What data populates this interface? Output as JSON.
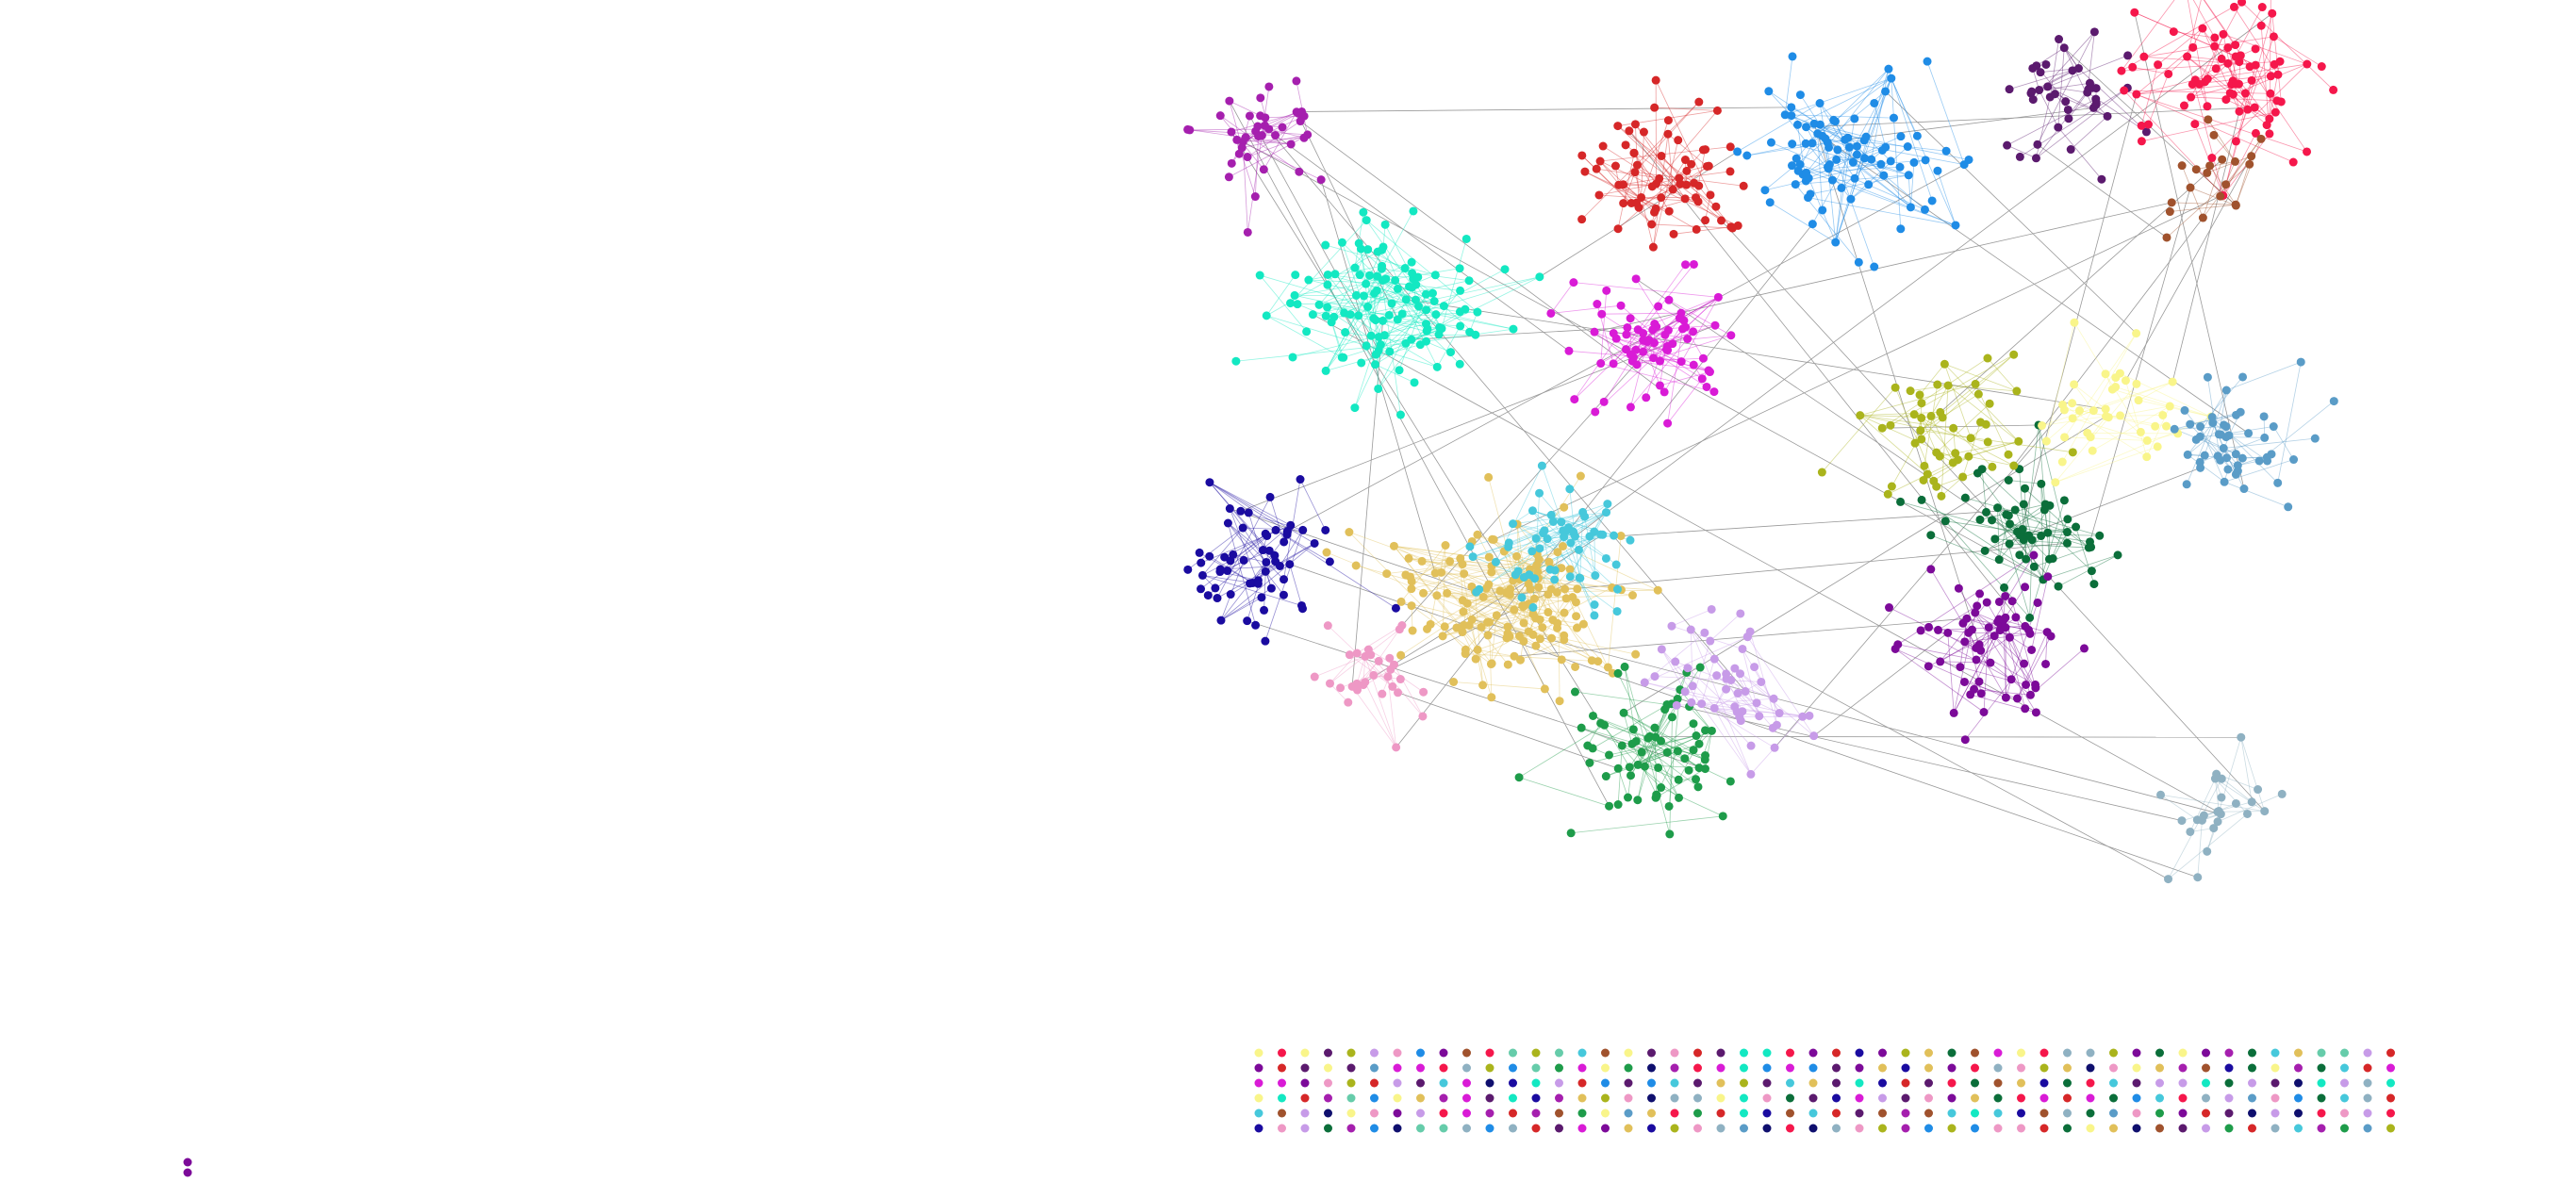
{
  "graph": {
    "background": "#ffffff",
    "edge_color": "#9a9a9a",
    "palette": [
      "#d62728",
      "#1f8ce6",
      "#5b1a6e",
      "#f5174b",
      "#a51fae",
      "#13e8c2",
      "#d91bd6",
      "#e1c05a",
      "#46c8db",
      "#1a0ba0",
      "#0b6e3a",
      "#1e9c4a",
      "#7c0a99",
      "#c79be8",
      "#ee98c5",
      "#aab41c",
      "#f9f58a",
      "#5a9cc7",
      "#8fb1c2",
      "#a0522d",
      "#0f0f6e",
      "#66ccaa"
    ],
    "clusters": [
      {
        "id": "c1",
        "color": "#d62728",
        "size": 70
      },
      {
        "id": "c2",
        "color": "#1f8ce6",
        "size": 90
      },
      {
        "id": "c3",
        "color": "#5b1a6e",
        "size": 40
      },
      {
        "id": "c4",
        "color": "#f5174b",
        "size": 80
      },
      {
        "id": "c5",
        "color": "#a51fae",
        "size": 40
      },
      {
        "id": "c6",
        "color": "#13e8c2",
        "size": 120
      },
      {
        "id": "c7",
        "color": "#d91bd6",
        "size": 70
      },
      {
        "id": "c8",
        "color": "#e1c05a",
        "size": 150
      },
      {
        "id": "c9",
        "color": "#46c8db",
        "size": 60
      },
      {
        "id": "c10",
        "color": "#1a0ba0",
        "size": 60
      },
      {
        "id": "c11",
        "color": "#0b6e3a",
        "size": 60
      },
      {
        "id": "c12",
        "color": "#1e9c4a",
        "size": 70
      },
      {
        "id": "c13",
        "color": "#7c0a99",
        "size": 70
      },
      {
        "id": "c14",
        "color": "#c79be8",
        "size": 50
      },
      {
        "id": "c15",
        "color": "#ee98c5",
        "size": 30
      },
      {
        "id": "c16",
        "color": "#aab41c",
        "size": 50
      },
      {
        "id": "c17",
        "color": "#f9f58a",
        "size": 40
      },
      {
        "id": "c18",
        "color": "#5a9cc7",
        "size": 50
      },
      {
        "id": "c19",
        "color": "#8fb1c2",
        "size": 25
      },
      {
        "id": "c20",
        "color": "#a0522d",
        "size": 20
      }
    ],
    "isolated_nodes": 300
  }
}
